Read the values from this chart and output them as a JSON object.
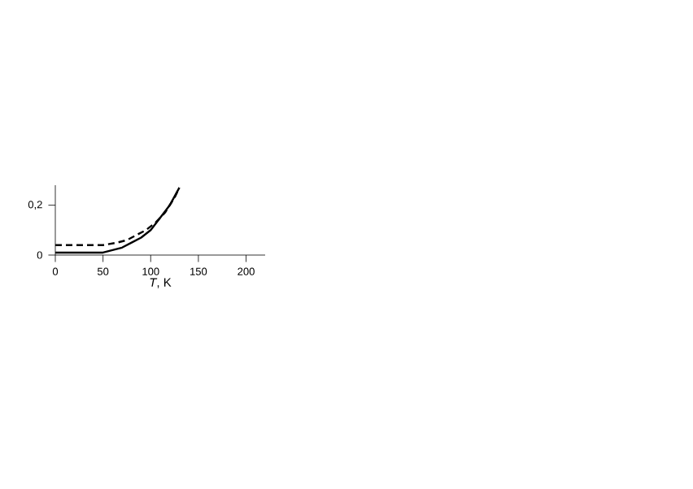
{
  "chart_data": {
    "type": "line",
    "xlabel": "*T*, K",
    "xlim": [
      0,
      220
    ],
    "ylim": [
      0,
      0.28
    ],
    "xticks": [
      0,
      50,
      100,
      150,
      200
    ],
    "yticks": [
      0,
      {
        "value": 0.2,
        "label": "0,2"
      }
    ],
    "grid": false,
    "marker": "none",
    "series": [
      {
        "color": "#000000",
        "line_style": "solid",
        "x": [
          0,
          50,
          60,
          70,
          80,
          90,
          100,
          110,
          120,
          130
        ],
        "values": [
          0.01,
          0.01,
          0.02,
          0.03,
          0.05,
          0.07,
          0.1,
          0.15,
          0.2,
          0.27
        ]
      },
      {
        "color": "#000000",
        "line_style": "dashed",
        "x": [
          0,
          50,
          65,
          75,
          85,
          95,
          105,
          115,
          125,
          130
        ],
        "values": [
          0.04,
          0.04,
          0.05,
          0.06,
          0.08,
          0.1,
          0.13,
          0.17,
          0.23,
          0.27
        ]
      }
    ]
  }
}
